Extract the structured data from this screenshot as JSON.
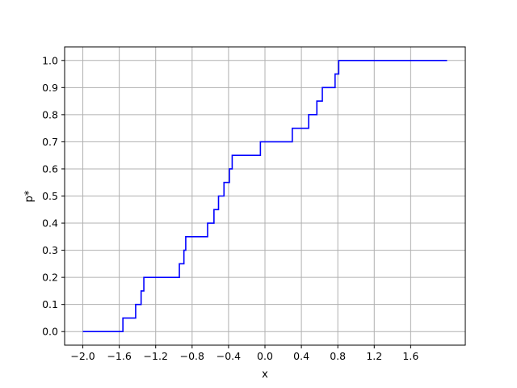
{
  "chart_data": {
    "type": "line",
    "step": "post",
    "title": "",
    "xlabel": "x",
    "ylabel": "p*",
    "xlim": [
      -2.2,
      2.2
    ],
    "ylim": [
      -0.05,
      1.05
    ],
    "x_ticks": [
      -2.0,
      -1.6,
      -1.2,
      -0.8,
      -0.4,
      0.0,
      0.4,
      0.8,
      1.2,
      1.6
    ],
    "x_tick_labels": [
      "−2.0",
      "−1.6",
      "−1.2",
      "−0.8",
      "−0.4",
      "0.0",
      "0.4",
      "0.8",
      "1.2",
      "1.6"
    ],
    "y_ticks": [
      0.0,
      0.1,
      0.2,
      0.3,
      0.4,
      0.5,
      0.6,
      0.7,
      0.8,
      0.9,
      1.0
    ],
    "y_tick_labels": [
      "0.0",
      "0.1",
      "0.2",
      "0.3",
      "0.4",
      "0.5",
      "0.6",
      "0.7",
      "0.8",
      "0.9",
      "1.0"
    ],
    "grid": true,
    "legend": "none",
    "series": [
      {
        "color": "#0000ff",
        "x": [
          -2.0,
          -1.56,
          -1.42,
          -1.36,
          -1.35,
          -1.33,
          -0.94,
          -0.89,
          -0.87,
          -0.63,
          -0.56,
          -0.51,
          -0.45,
          -0.39,
          -0.37,
          -0.36,
          -0.05,
          0.3,
          0.48,
          0.57,
          0.63,
          0.77,
          0.81,
          2.0
        ],
        "y": [
          0.0,
          0.05,
          0.1,
          0.15,
          0.15,
          0.2,
          0.25,
          0.3,
          0.35,
          0.4,
          0.45,
          0.5,
          0.55,
          0.6,
          0.6,
          0.65,
          0.7,
          0.75,
          0.8,
          0.85,
          0.9,
          0.95,
          1.0,
          1.0
        ]
      }
    ]
  }
}
